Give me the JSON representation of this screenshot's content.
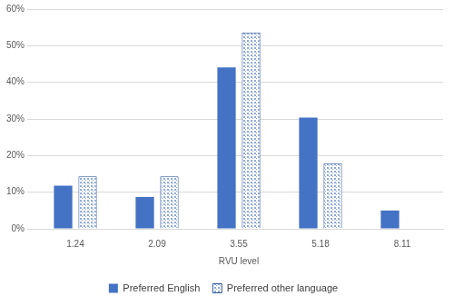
{
  "chart_data": {
    "type": "bar",
    "x_label": "RVU level",
    "categories": [
      "1.24",
      "2.09",
      "3.55",
      "5.18",
      "8.11"
    ],
    "series": [
      {
        "name": "Preferred English",
        "color": "#4472c4",
        "values": [
          11.8,
          8.7,
          44.1,
          30.4,
          5.0
        ]
      },
      {
        "name": "Preferred other language",
        "color": "#8faadc",
        "marker": "dotted",
        "values": [
          14.3,
          14.3,
          53.6,
          17.9,
          0
        ]
      }
    ],
    "ylim": [
      0,
      60
    ],
    "yticks": [
      {
        "value": 0,
        "label": "0%"
      },
      {
        "value": 10,
        "label": "10%"
      },
      {
        "value": 20,
        "label": "20%"
      },
      {
        "value": 30,
        "label": "30%"
      },
      {
        "value": 40,
        "label": "40%"
      },
      {
        "value": 50,
        "label": "50%"
      },
      {
        "value": 60,
        "label": "60%"
      }
    ],
    "grid": true,
    "legend": "bottom"
  }
}
